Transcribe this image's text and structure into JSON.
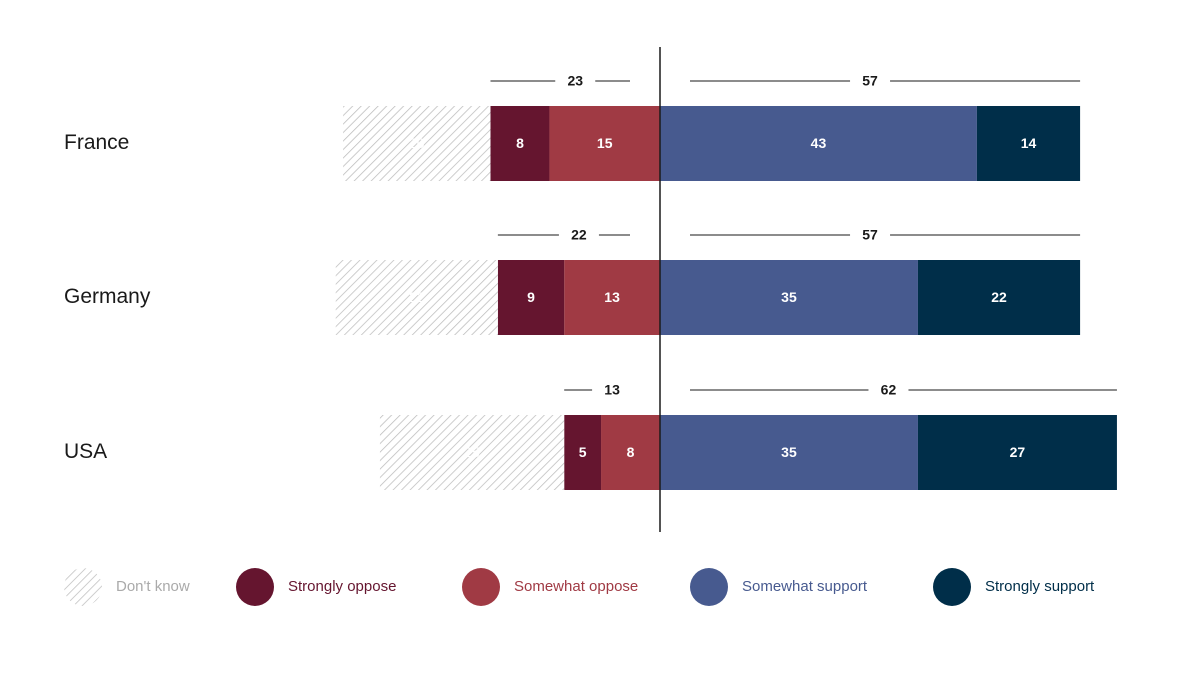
{
  "chart_data": {
    "type": "diverging-bar",
    "categories": [
      "France",
      "Germany",
      "USA"
    ],
    "series": [
      {
        "name": "Don't know",
        "color": "#bcbcbc",
        "values": [
          20,
          22,
          25
        ]
      },
      {
        "name": "Strongly oppose",
        "color": "#65152f",
        "values": [
          8,
          9,
          5
        ]
      },
      {
        "name": "Somewhat oppose",
        "color": "#a03a44",
        "values": [
          15,
          13,
          8
        ]
      },
      {
        "name": "Somewhat support",
        "color": "#475a8f",
        "values": [
          43,
          35,
          35
        ]
      },
      {
        "name": "Strongly support",
        "color": "#002e49",
        "values": [
          14,
          22,
          27
        ]
      }
    ],
    "totals": {
      "oppose": [
        23,
        22,
        13
      ],
      "support": [
        57,
        57,
        62
      ]
    },
    "hatched_series": "Don't know"
  }
}
